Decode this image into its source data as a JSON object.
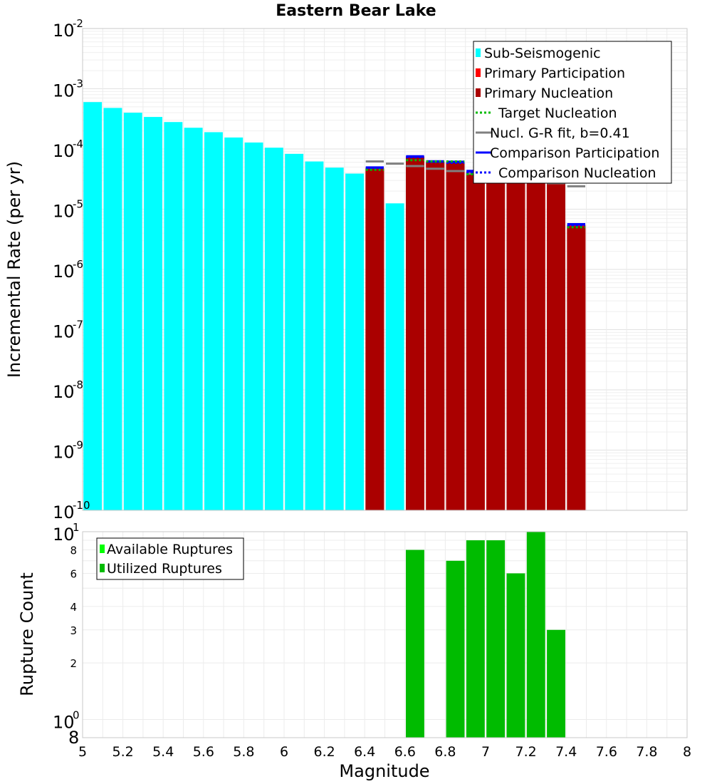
{
  "chart_data": [
    {
      "type": "bar",
      "title": "Eastern Bear Lake",
      "xlabel": "",
      "ylabel": "Incremental Rate (per yr)",
      "yscale": "log",
      "xlim": [
        5,
        8
      ],
      "ylim": [
        1e-10,
        0.01
      ],
      "y_tick_exponents": [
        -2,
        -3,
        -4,
        -5,
        -6,
        -7,
        -8,
        -9,
        -10
      ],
      "legend_position": "top-right",
      "legend": [
        {
          "label": "Sub-Seismogenic",
          "color": "#00ffff",
          "style": "box"
        },
        {
          "label": "Primary Participation",
          "color": "#ff0000",
          "style": "box"
        },
        {
          "label": "Primary Nucleation",
          "color": "#aa0000",
          "style": "box"
        },
        {
          "label": "Target Nucleation",
          "color": "#00bb00",
          "style": "dotted"
        },
        {
          "label": "Nucl. G-R fit, b=0.41",
          "color": "#808080",
          "style": "solid"
        },
        {
          "label": "Comparison Participation",
          "color": "#0000ff",
          "style": "solid"
        },
        {
          "label": "Comparison Nucleation",
          "color": "#0000ff",
          "style": "dotted"
        }
      ],
      "series": [
        {
          "name": "Sub-Seismogenic",
          "color": "#00ffff",
          "x": [
            5.05,
            5.15,
            5.25,
            5.35,
            5.45,
            5.55,
            5.65,
            5.75,
            5.85,
            5.95,
            6.05,
            6.15,
            6.25,
            6.35,
            6.55
          ],
          "values": [
            0.0006,
            0.00048,
            0.0004,
            0.00034,
            0.00028,
            0.000225,
            0.00019,
            0.000155,
            0.000128,
            0.000105,
            8.3e-05,
            6.2e-05,
            4.9e-05,
            3.9e-05,
            1.25e-05
          ]
        },
        {
          "name": "Primary Participation",
          "color": "#ff0000",
          "x": [
            6.45,
            6.65,
            6.75,
            6.85,
            6.95,
            7.05,
            7.15,
            7.25,
            7.35,
            7.45
          ],
          "values": [
            4.85e-05,
            7.5e-05,
            6.2e-05,
            6e-05,
            4.2e-05,
            5.4e-05,
            5.8e-05,
            4.9e-05,
            4e-05,
            5.5e-06
          ]
        },
        {
          "name": "Primary Nucleation",
          "color": "#aa0000",
          "x": [
            6.45,
            6.65,
            6.75,
            6.85,
            6.95,
            7.05,
            7.15,
            7.25,
            7.35,
            7.45
          ],
          "values": [
            4.65e-05,
            7.3e-05,
            6e-05,
            5.8e-05,
            4e-05,
            3.4e-05,
            3.3e-05,
            3.6e-05,
            3.6e-05,
            5.2e-06
          ]
        },
        {
          "name": "Comparison Participation",
          "color": "#0000ff",
          "x": [
            6.45,
            6.65,
            6.75,
            6.85,
            6.95,
            7.05,
            7.15,
            7.25,
            7.35,
            7.45
          ],
          "values": [
            4.9e-05,
            7.5e-05,
            6.2e-05,
            6.1e-05,
            4.3e-05,
            5.2e-05,
            5.7e-05,
            5e-05,
            4.1e-05,
            5.6e-06
          ]
        },
        {
          "name": "Comparison Nucleation",
          "color": "#0000ff",
          "x": [
            6.45,
            6.65,
            6.75,
            6.85,
            6.95,
            7.05,
            7.15,
            7.25,
            7.35,
            7.45
          ],
          "values": [
            4.75e-05,
            7.3e-05,
            6.1e-05,
            5.9e-05,
            4.1e-05,
            3.5e-05,
            3.4e-05,
            3.7e-05,
            3.7e-05,
            5.3e-06
          ]
        },
        {
          "name": "Target Nucleation",
          "color": "#00bb00",
          "x": [
            6.45,
            6.65,
            6.75,
            6.85,
            6.95,
            7.05,
            7.15,
            7.25,
            7.35,
            7.45
          ],
          "values": [
            4.5e-05,
            6.5e-05,
            6.2e-05,
            6.2e-05,
            3.8e-05,
            3.5e-05,
            3.4e-05,
            3.6e-05,
            3.5e-05,
            5e-06
          ]
        },
        {
          "name": "Nucl. G-R fit, b=0.41",
          "color": "#808080",
          "x": [
            6.45,
            6.55,
            6.65,
            6.75,
            6.85,
            6.95,
            7.05,
            7.15,
            7.25,
            7.35,
            7.45
          ],
          "values": [
            6.2e-05,
            5.7e-05,
            5.2e-05,
            4.7e-05,
            4.3e-05,
            3.9e-05,
            3.6e-05,
            3.3e-05,
            3e-05,
            2.7e-05,
            2.4e-05
          ]
        }
      ]
    },
    {
      "type": "bar",
      "xlabel": "Magnitude",
      "ylabel": "Rupture Count",
      "yscale": "log",
      "xlim": [
        5,
        8
      ],
      "ylim": [
        0.8,
        10
      ],
      "x_ticks": [
        "5",
        "5.2",
        "5.4",
        "5.6",
        "5.8",
        "6",
        "6.2",
        "6.4",
        "6.6",
        "6.8",
        "7",
        "7.2",
        "7.4",
        "7.6",
        "7.8",
        "8"
      ],
      "y_small_ticks": [
        {
          "value": 8,
          "label": "8"
        },
        {
          "value": 6,
          "label": "6"
        },
        {
          "value": 4,
          "label": "4"
        },
        {
          "value": 3,
          "label": "3"
        },
        {
          "value": 2,
          "label": "2"
        }
      ],
      "y_decade_ticks": [
        {
          "value": 10,
          "base": "10",
          "exp": "1"
        },
        {
          "value": 1,
          "base": "10",
          "exp": "0"
        }
      ],
      "y_bottom_label": "8",
      "legend_position": "top-left",
      "legend": [
        {
          "label": "Available Ruptures",
          "color": "#00ff00"
        },
        {
          "label": "Utilized Ruptures",
          "color": "#00bb00"
        }
      ],
      "series": [
        {
          "name": "Utilized Ruptures",
          "color": "#00bb00",
          "x": [
            6.65,
            6.85,
            6.95,
            7.05,
            7.15,
            7.25,
            7.35
          ],
          "values": [
            8,
            7,
            9,
            9,
            6,
            10,
            3
          ]
        }
      ]
    }
  ]
}
